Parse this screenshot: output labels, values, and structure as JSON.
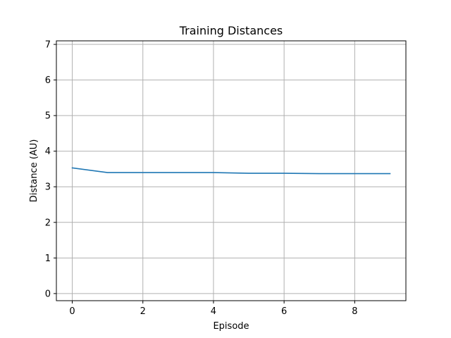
{
  "chart_data": {
    "type": "line",
    "title": "Training Distances",
    "xlabel": "Episode",
    "ylabel": "Distance (AU)",
    "xlim": [
      -0.45,
      9.45
    ],
    "ylim": [
      -0.2,
      7.1
    ],
    "xticks": [
      0,
      2,
      4,
      6,
      8
    ],
    "yticks": [
      0,
      1,
      2,
      3,
      4,
      5,
      6,
      7
    ],
    "grid": true,
    "colors": {
      "line": "#1f77b4",
      "grid": "#b0b0b0",
      "axes": "#000000"
    },
    "series": [
      {
        "x": [
          0,
          1,
          2,
          3,
          4,
          5,
          6,
          7,
          8,
          9
        ],
        "values": [
          3.53,
          3.4,
          3.4,
          3.4,
          3.4,
          3.38,
          3.38,
          3.37,
          3.37,
          3.37
        ]
      }
    ]
  }
}
